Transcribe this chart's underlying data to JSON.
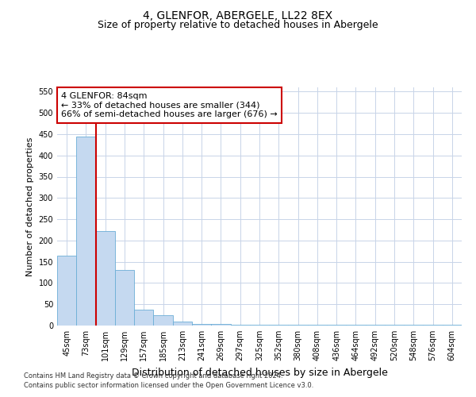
{
  "title": "4, GLENFOR, ABERGELE, LL22 8EX",
  "subtitle": "Size of property relative to detached houses in Abergele",
  "xlabel": "Distribution of detached houses by size in Abergele",
  "ylabel": "Number of detached properties",
  "footnote1": "Contains HM Land Registry data © Crown copyright and database right 2024.",
  "footnote2": "Contains public sector information licensed under the Open Government Licence v3.0.",
  "bin_labels": [
    "45sqm",
    "73sqm",
    "101sqm",
    "129sqm",
    "157sqm",
    "185sqm",
    "213sqm",
    "241sqm",
    "269sqm",
    "297sqm",
    "325sqm",
    "352sqm",
    "380sqm",
    "408sqm",
    "436sqm",
    "464sqm",
    "492sqm",
    "520sqm",
    "548sqm",
    "576sqm",
    "604sqm"
  ],
  "bar_heights": [
    165,
    445,
    222,
    130,
    37,
    25,
    10,
    3,
    3,
    2,
    2,
    2,
    1,
    1,
    1,
    1,
    1,
    1,
    1,
    1,
    1
  ],
  "bar_color": "#c5d9f0",
  "bar_edge_color": "#6baed6",
  "grid_color": "#c8d4e8",
  "annotation_line1": "4 GLENFOR: 84sqm",
  "annotation_line2": "← 33% of detached houses are smaller (344)",
  "annotation_line3": "66% of semi-detached houses are larger (676) →",
  "annotation_box_color": "#ffffff",
  "annotation_box_edge_color": "#cc0000",
  "red_line_color": "#cc0000",
  "red_line_x": 1.5,
  "ylim": [
    0,
    560
  ],
  "yticks": [
    0,
    50,
    100,
    150,
    200,
    250,
    300,
    350,
    400,
    450,
    500,
    550
  ],
  "background_color": "#ffffff",
  "title_fontsize": 10,
  "subtitle_fontsize": 9,
  "ylabel_fontsize": 8,
  "xlabel_fontsize": 9,
  "tick_fontsize": 7,
  "annotation_fontsize": 8,
  "footnote_fontsize": 6
}
